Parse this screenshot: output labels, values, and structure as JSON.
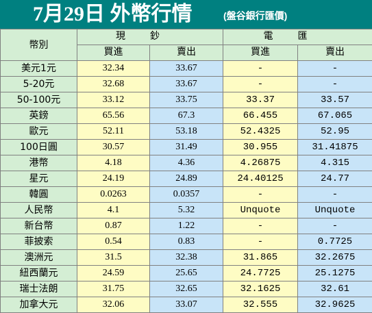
{
  "header": {
    "title": "7月29日 外幣行情",
    "subtitle": "(盤谷銀行匯價)"
  },
  "table": {
    "currency_col_label": "幣別",
    "groups": [
      {
        "label": "現鈔",
        "cols": [
          "買進",
          "賣出"
        ]
      },
      {
        "label": "電匯",
        "cols": [
          "買進",
          "賣出"
        ]
      }
    ],
    "rows": [
      {
        "name": "美元1元",
        "cash_buy": "32.34",
        "cash_sell": "33.67",
        "tt_buy": "-",
        "tt_sell": "-"
      },
      {
        "name": "5-20元",
        "cash_buy": "32.68",
        "cash_sell": "33.67",
        "tt_buy": "-",
        "tt_sell": "-"
      },
      {
        "name": "50-100元",
        "cash_buy": "33.12",
        "cash_sell": "33.75",
        "tt_buy": "33.37",
        "tt_sell": "33.57"
      },
      {
        "name": "英鎊",
        "cash_buy": "65.56",
        "cash_sell": "67.3",
        "tt_buy": "66.455",
        "tt_sell": "67.065"
      },
      {
        "name": "歐元",
        "cash_buy": "52.11",
        "cash_sell": "53.18",
        "tt_buy": "52.4325",
        "tt_sell": "52.95"
      },
      {
        "name": "100日圓",
        "cash_buy": "30.57",
        "cash_sell": "31.49",
        "tt_buy": "30.955",
        "tt_sell": "31.41875"
      },
      {
        "name": "港幣",
        "cash_buy": "4.18",
        "cash_sell": "4.36",
        "tt_buy": "4.26875",
        "tt_sell": "4.315"
      },
      {
        "name": "星元",
        "cash_buy": "24.19",
        "cash_sell": "24.89",
        "tt_buy": "24.40125",
        "tt_sell": "24.77"
      },
      {
        "name": "韓圓",
        "cash_buy": "0.0263",
        "cash_sell": "0.0357",
        "tt_buy": "-",
        "tt_sell": "-"
      },
      {
        "name": "人民幣",
        "cash_buy": "4.1",
        "cash_sell": "5.32",
        "tt_buy": "Unquote",
        "tt_sell": "Unquote"
      },
      {
        "name": "新台幣",
        "cash_buy": "0.87",
        "cash_sell": "1.22",
        "tt_buy": "-",
        "tt_sell": "-"
      },
      {
        "name": "菲披索",
        "cash_buy": "0.54",
        "cash_sell": "0.83",
        "tt_buy": "-",
        "tt_sell": "0.7725"
      },
      {
        "name": "澳洲元",
        "cash_buy": "31.5",
        "cash_sell": "32.38",
        "tt_buy": "31.865",
        "tt_sell": "32.2675"
      },
      {
        "name": "紐西蘭元",
        "cash_buy": "24.59",
        "cash_sell": "25.65",
        "tt_buy": "24.7725",
        "tt_sell": "25.1275"
      },
      {
        "name": "瑞士法朗",
        "cash_buy": "31.75",
        "cash_sell": "32.65",
        "tt_buy": "32.1625",
        "tt_sell": "32.61"
      },
      {
        "name": "加拿大元",
        "cash_buy": "32.06",
        "cash_sell": "33.07",
        "tt_buy": "32.555",
        "tt_sell": "32.9625"
      }
    ]
  },
  "colors": {
    "title_bg": "#008080",
    "name_col_bg": "#d4eed4",
    "buy_col_bg": "#fefcc4",
    "sell_col_bg": "#c8e4f8"
  }
}
